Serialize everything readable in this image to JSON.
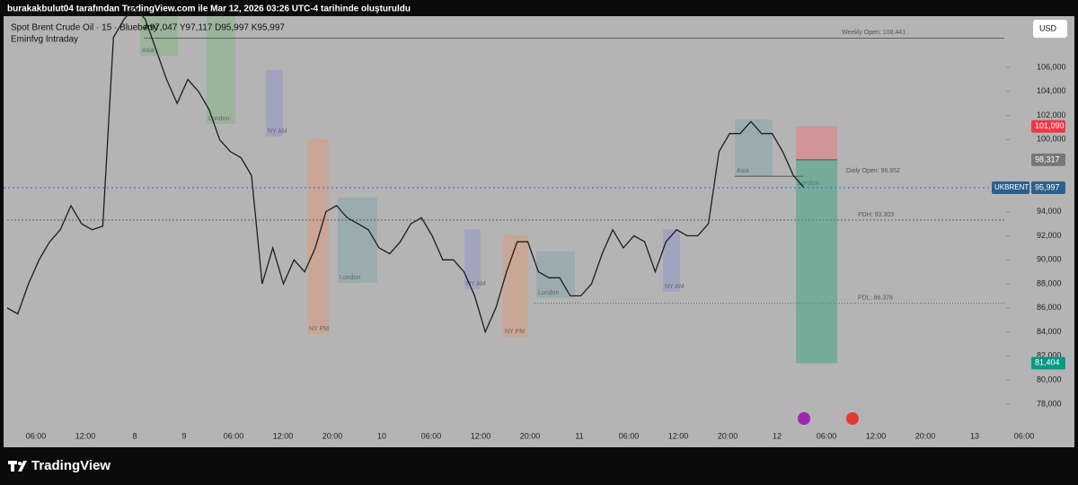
{
  "chart_data": {
    "type": "line",
    "header": "burakakbulut04 tarafından TradingView.com ile Mar 12, 2026 03:26 UTC-4 tarihinde oluşturuldu",
    "title": "Spot Brent Crude Oil · 15 · Blueberry",
    "ohlc_text": "A97,047 Y97,117 D95,997 K95,997",
    "indicator": "Eminfvg Intraday",
    "currency": "USD",
    "brand": "TradingView",
    "x_labels": [
      "06:00",
      "12:00",
      "8",
      "9",
      "06:00",
      "12:00",
      "20:00",
      "10",
      "06:00",
      "12:00",
      "20:00",
      "11",
      "06:00",
      "12:00",
      "20:00",
      "12",
      "06:00",
      "12:00",
      "20:00",
      "13",
      "06:00"
    ],
    "series": [
      {
        "name": "UKBRENT",
        "color": "#1e1e1e",
        "values": [
          86,
          85.5,
          88,
          90,
          91.5,
          92.5,
          94.5,
          93,
          92.5,
          92.8,
          108.5,
          110,
          111,
          110,
          107.5,
          105,
          103,
          105,
          104,
          102.5,
          100,
          99,
          98.5,
          97,
          88,
          91,
          88,
          90,
          89,
          91,
          94,
          94.5,
          93.5,
          93,
          92.5,
          91,
          90.5,
          91.5,
          93,
          93.5,
          92,
          90,
          90,
          89,
          87,
          84,
          86,
          89,
          91.5,
          91.5,
          89,
          88.5,
          88.5,
          87,
          87,
          88,
          90.5,
          92.5,
          91,
          92,
          91.5,
          89,
          91.5,
          92.5,
          92,
          92,
          93,
          99,
          100.5,
          100.5,
          101.5,
          100.5,
          100.5,
          99,
          97,
          96
        ]
      }
    ],
    "ylim": [
      76.5,
      110.26
    ],
    "yticks": [
      {
        "value": 106,
        "label": "106,000"
      },
      {
        "value": 104,
        "label": "104,000"
      },
      {
        "value": 102,
        "label": "102,000"
      },
      {
        "value": 100,
        "label": "100,000"
      },
      {
        "value": 94,
        "label": "94,000"
      },
      {
        "value": 92,
        "label": "92,000"
      },
      {
        "value": 90,
        "label": "90,000"
      },
      {
        "value": 88,
        "label": "88,000"
      },
      {
        "value": 86,
        "label": "86,000"
      },
      {
        "value": 84,
        "label": "84,000"
      },
      {
        "value": 82,
        "label": "82,000"
      },
      {
        "value": 80,
        "label": "80,000"
      },
      {
        "value": 78,
        "label": "78,000"
      }
    ],
    "levels": [
      {
        "label": "Weekly Open: 108.441",
        "value": 108.441
      },
      {
        "label": "Daily Open: 96.952",
        "value": 96.952
      },
      {
        "label": "PDH: 93.303",
        "value": 93.303
      },
      {
        "label": "PDL: 86.378",
        "value": 86.378
      }
    ],
    "last_price": {
      "value": 95.997,
      "label": "95,997"
    },
    "position": {
      "stop": {
        "value": 101.09,
        "label": "101,090"
      },
      "entry": {
        "value": 98.317,
        "label": "98,317"
      },
      "target": {
        "value": 81.404,
        "label": "81,404"
      }
    },
    "sessions": [
      "Asia",
      "London",
      "NY AM",
      "NY PM",
      "London",
      "NY AM",
      "NY PM",
      "London",
      "NY AM",
      "Asia",
      "London"
    ]
  }
}
